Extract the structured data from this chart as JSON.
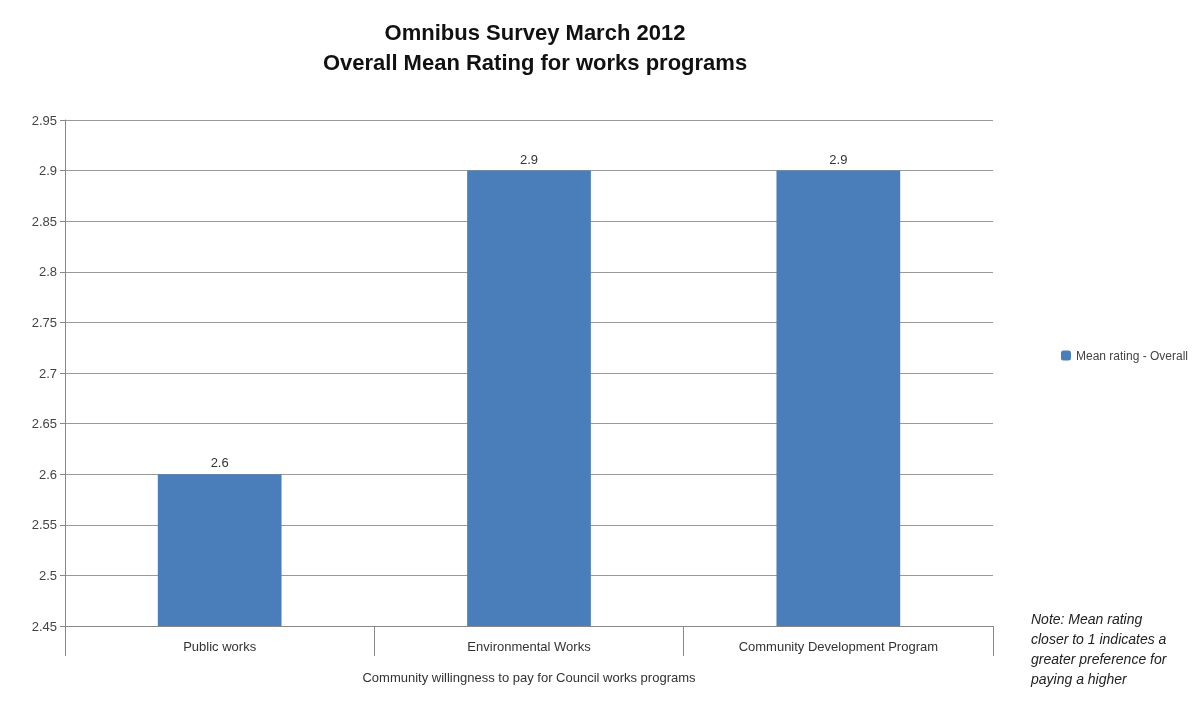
{
  "chart_data": {
    "type": "bar",
    "title": "Omnibus Survey March 2012\nOverall Mean Rating for works programs",
    "xlabel": "Community willingness to pay for Council works programs",
    "categories": [
      "Public works",
      "Environmental Works",
      "Community Development Program"
    ],
    "series": [
      {
        "name": "Mean rating - Overall",
        "color": "#4a7ebb",
        "values": [
          2.6,
          2.9,
          2.9
        ]
      }
    ],
    "ylim": [
      2.45,
      2.95
    ],
    "yticks": [
      2.45,
      2.5,
      2.55,
      2.6,
      2.65,
      2.7,
      2.75,
      2.8,
      2.85,
      2.9,
      2.95
    ],
    "grid": "y",
    "legend": "right",
    "data_labels": true,
    "annotations": [
      "Note: Mean rating closer to 1 indicates a greater preference for paying a higher"
    ]
  }
}
